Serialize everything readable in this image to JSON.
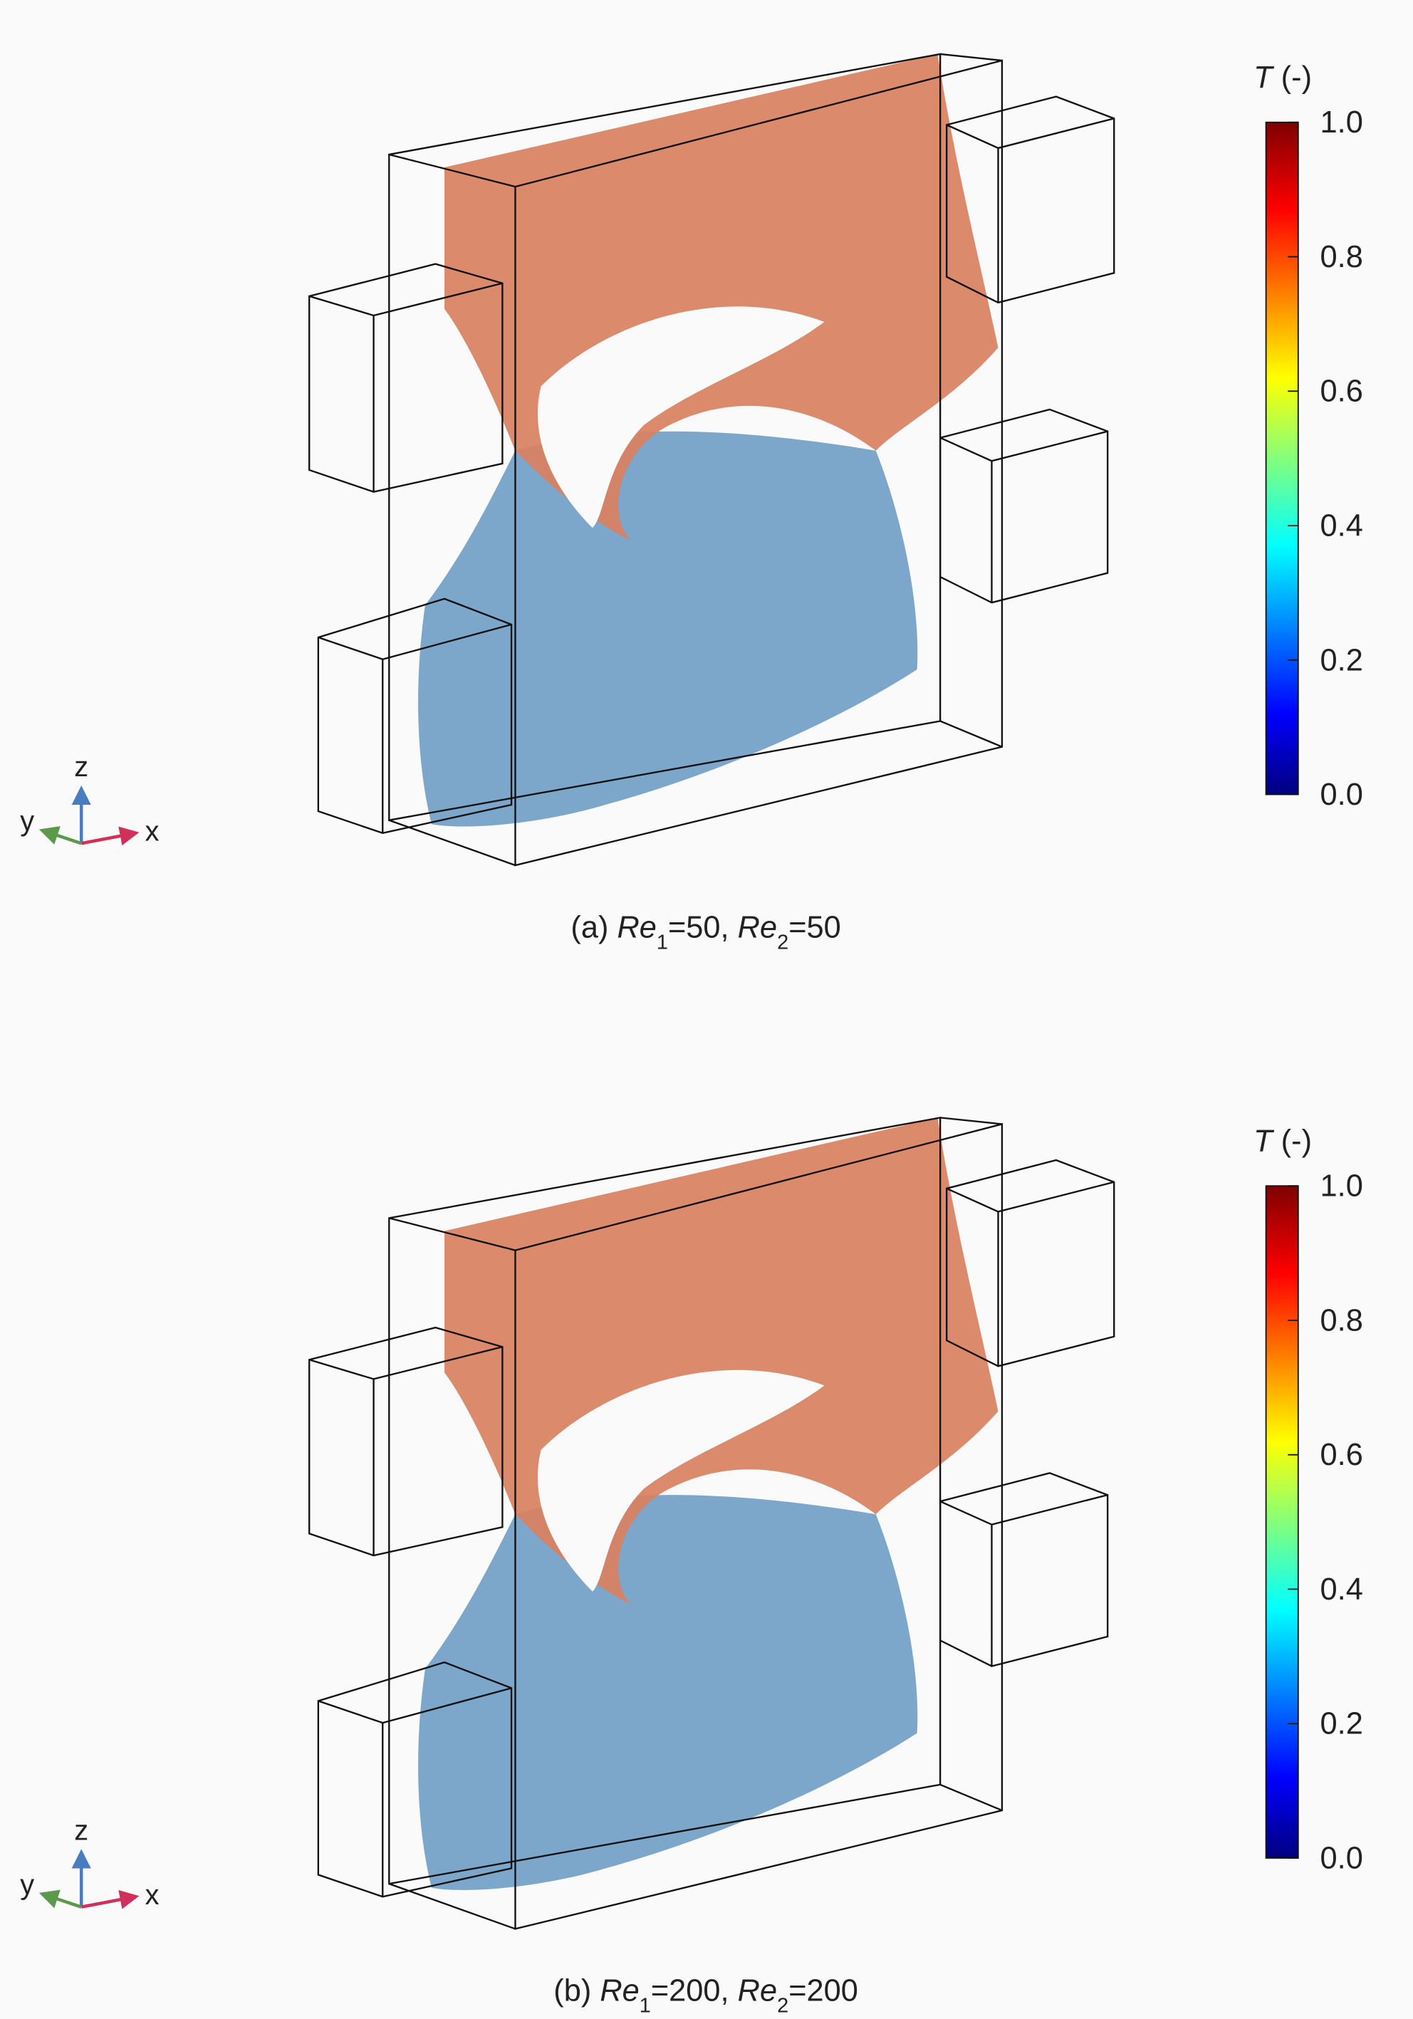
{
  "panels": [
    {
      "caption": [
        {
          "text": "(a) "
        },
        {
          "text": "Re",
          "italic": true
        },
        {
          "text": "1",
          "sub": true
        },
        {
          "text": "=50, "
        },
        {
          "text": "Re",
          "italic": true
        },
        {
          "text": "2",
          "sub": true
        },
        {
          "text": "=50"
        }
      ],
      "colorbar": {
        "title": [
          {
            "text": "T",
            "italic": true
          },
          {
            "text": " (-)"
          }
        ],
        "ticks": [
          {
            "value": 0,
            "label": "0.0"
          },
          {
            "value": 0.2,
            "label": "0.2"
          },
          {
            "value": 0.4,
            "label": "0.4"
          },
          {
            "value": 0.6,
            "label": "0.6"
          },
          {
            "value": 0.8,
            "label": "0.8"
          },
          {
            "value": 1,
            "label": "1.0"
          }
        ]
      },
      "axes": {
        "z": "z",
        "y": "y",
        "x": "x"
      }
    },
    {
      "caption": [
        {
          "text": "(b) "
        },
        {
          "text": "Re",
          "italic": true
        },
        {
          "text": "1",
          "sub": true
        },
        {
          "text": "=200, "
        },
        {
          "text": "Re",
          "italic": true
        },
        {
          "text": "2",
          "sub": true
        },
        {
          "text": "=200"
        }
      ],
      "colorbar": {
        "title": [
          {
            "text": "T",
            "italic": true
          },
          {
            "text": " (-)"
          }
        ],
        "ticks": [
          {
            "value": 0,
            "label": "0.0"
          },
          {
            "value": 0.2,
            "label": "0.2"
          },
          {
            "value": 0.4,
            "label": "0.4"
          },
          {
            "value": 0.6,
            "label": "0.6"
          },
          {
            "value": 0.8,
            "label": "0.8"
          },
          {
            "value": 1,
            "label": "1.0"
          }
        ]
      },
      "axes": {
        "z": "z",
        "y": "y",
        "x": "x"
      }
    }
  ]
}
